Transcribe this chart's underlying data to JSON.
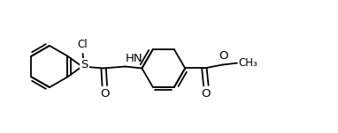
{
  "background_color": "#ffffff",
  "line_color": "#000000",
  "lw": 1.3,
  "fs": 8.5,
  "figsize": [
    3.82,
    1.51
  ],
  "dpi": 100,
  "xlim": [
    0,
    9.5
  ],
  "ylim": [
    0,
    3.8
  ]
}
